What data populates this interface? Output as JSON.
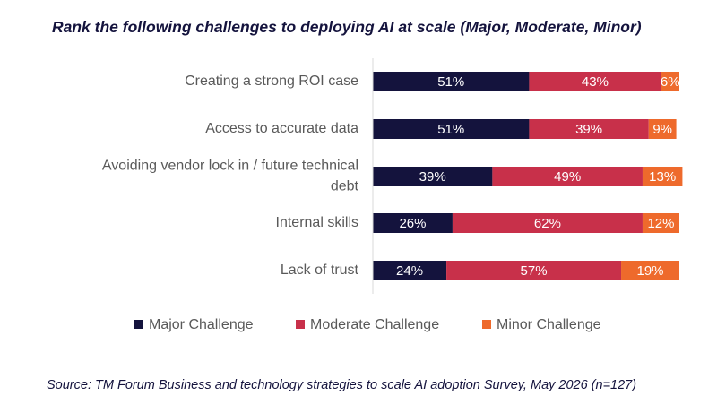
{
  "title": "Rank the following challenges to deploying AI at scale (Major, Moderate, Minor)",
  "source": "Source:  TM Forum Business and technology strategies to scale AI adoption Survey, May 2026 (n=127)",
  "chart_data": {
    "type": "bar",
    "orientation": "horizontal",
    "stacked": true,
    "categories": [
      "Creating a strong ROI case",
      "Access to accurate data",
      "Avoiding vendor lock in / future technical debt",
      "Internal skills",
      "Lack of trust"
    ],
    "category_lines": [
      [
        "Creating a strong ROI case"
      ],
      [
        "Access to accurate data"
      ],
      [
        "Avoiding vendor lock in / future technical",
        "debt"
      ],
      [
        "Internal skills"
      ],
      [
        "Lack of trust"
      ]
    ],
    "series": [
      {
        "name": "Major Challenge",
        "color": "#14133d",
        "values": [
          51,
          51,
          39,
          26,
          24
        ],
        "labels": [
          "51%",
          "51%",
          "39%",
          "26%",
          "24%"
        ]
      },
      {
        "name": "Moderate Challenge",
        "color": "#c8304a",
        "values": [
          43,
          39,
          49,
          62,
          57
        ],
        "labels": [
          "43%",
          "39%",
          "49%",
          "62%",
          "57%"
        ]
      },
      {
        "name": "Minor Challenge",
        "color": "#ee6a2c",
        "values": [
          6,
          9,
          13,
          12,
          19
        ],
        "labels": [
          "6%",
          "9%",
          "13%",
          "12%",
          "19%"
        ]
      }
    ],
    "legend_position": "bottom",
    "grid": false
  }
}
